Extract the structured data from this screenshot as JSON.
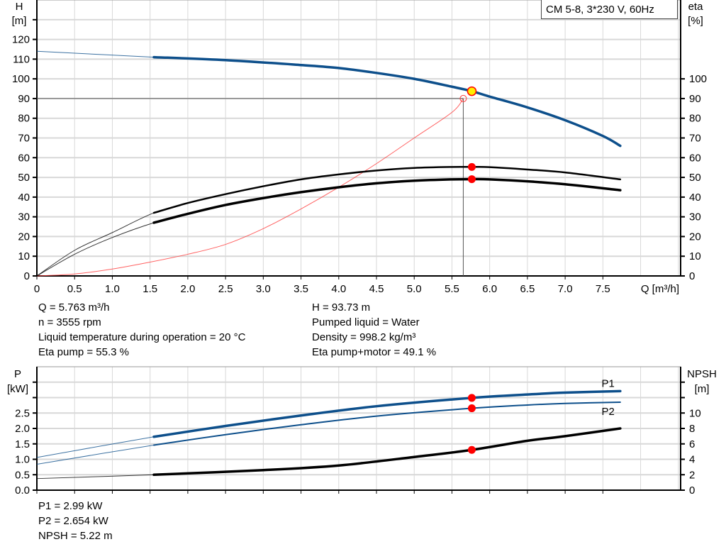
{
  "title_box": "CM 5-8, 3*230 V, 60Hz",
  "colors": {
    "head": "#0d4f8b",
    "eta": "#000000",
    "system": "#ff3b3b",
    "power": "#0d4f8b",
    "npsh": "#000000",
    "marker": "#ff0000",
    "duty": "#ffee00",
    "grid": "#d8d8d8"
  },
  "chart_data": [
    {
      "type": "line",
      "xlabel": "Q [m³/h]",
      "ylabel_left": [
        "H",
        "[m]"
      ],
      "ylabel_right": [
        "eta",
        "[%]"
      ],
      "x_ticks": [
        "0",
        "0.5",
        "1.0",
        "1.5",
        "2.0",
        "2.5",
        "3.0",
        "3.5",
        "4.0",
        "4.5",
        "5.0",
        "5.5",
        "6.0",
        "6.5",
        "7.0",
        "7.5"
      ],
      "y_left_ticks": [
        "0",
        "10",
        "20",
        "30",
        "40",
        "50",
        "60",
        "70",
        "80",
        "90",
        "100",
        "110",
        "120"
      ],
      "y_right_ticks": [
        "0",
        "10",
        "20",
        "30",
        "40",
        "50",
        "60",
        "70",
        "80",
        "90",
        "100"
      ],
      "xlim": [
        0,
        8.53
      ],
      "ylim": [
        0,
        140
      ],
      "grid": true,
      "operating_range_start_q": 1.55,
      "series": [
        {
          "key": "H",
          "axis": "left",
          "x": [
            0,
            1.55,
            2.5,
            3.5,
            4.0,
            4.5,
            5.0,
            5.5,
            5.763,
            6.0,
            6.5,
            7.0,
            7.5,
            7.73
          ],
          "y": [
            114,
            111,
            109.5,
            107,
            105.5,
            103,
            100,
            96,
            93.73,
            91,
            85.5,
            79,
            71,
            66
          ]
        },
        {
          "key": "eta_pump",
          "axis": "right",
          "x": [
            0,
            0.5,
            1.0,
            1.55,
            2.0,
            2.5,
            3.0,
            3.5,
            4.0,
            4.5,
            5.0,
            5.5,
            5.763,
            6.0,
            6.5,
            7.0,
            7.73
          ],
          "y": [
            0,
            13,
            22,
            32,
            37,
            41.5,
            45.5,
            49,
            51.5,
            53.5,
            54.8,
            55.3,
            55.3,
            55.2,
            54,
            52.5,
            49
          ]
        },
        {
          "key": "eta_pump_motor",
          "axis": "right",
          "x": [
            0,
            0.5,
            1.0,
            1.55,
            2.0,
            2.5,
            3.0,
            3.5,
            4.0,
            4.5,
            5.0,
            5.5,
            5.763,
            6.0,
            6.5,
            7.0,
            7.73
          ],
          "y": [
            0,
            11,
            19.5,
            27,
            31.5,
            36,
            39.5,
            42.5,
            45,
            47,
            48.3,
            49,
            49.1,
            49,
            48,
            46.5,
            43.5
          ]
        },
        {
          "key": "system",
          "axis": "left",
          "x": [
            0,
            0.5,
            1.0,
            1.5,
            2.0,
            2.5,
            3.0,
            3.5,
            4.0,
            4.5,
            5.0,
            5.5,
            5.65
          ],
          "y": [
            0,
            1,
            3.5,
            7,
            11,
            16,
            24,
            34,
            45,
            57,
            70,
            83,
            90
          ]
        }
      ],
      "duty_point": {
        "q": 5.763,
        "h": 93.73,
        "eta_pump": 55.3,
        "eta_pump_motor": 49.1
      },
      "set_point": {
        "q": 5.65,
        "h": 90
      }
    },
    {
      "type": "line",
      "ylabel_left": [
        "P",
        "[kW]"
      ],
      "ylabel_right": [
        "NPSH",
        "[m]"
      ],
      "y_left_ticks": [
        "0.0",
        "0.5",
        "1.0",
        "1.5",
        "2.0",
        "2.5"
      ],
      "y_right_ticks": [
        "0",
        "2",
        "4",
        "6",
        "8",
        "10"
      ],
      "xlim": [
        0,
        8.53
      ],
      "ylim_left": [
        0,
        4.0
      ],
      "ylim_right": [
        0,
        16
      ],
      "grid": true,
      "series": [
        {
          "key": "P1",
          "name": "P1",
          "axis": "left",
          "x": [
            0,
            1.55,
            2.5,
            3.5,
            4.5,
            5.763,
            6.5,
            7.0,
            7.73
          ],
          "y": [
            1.06,
            1.73,
            2.08,
            2.42,
            2.72,
            2.99,
            3.1,
            3.16,
            3.21
          ]
        },
        {
          "key": "P2",
          "name": "P2",
          "axis": "left",
          "x": [
            0,
            1.55,
            2.5,
            3.5,
            4.5,
            5.763,
            6.5,
            7.0,
            7.73
          ],
          "y": [
            0.84,
            1.46,
            1.8,
            2.12,
            2.4,
            2.654,
            2.76,
            2.81,
            2.85
          ]
        },
        {
          "key": "NPSH",
          "axis": "right",
          "x": [
            0,
            1.55,
            3.0,
            4.0,
            5.0,
            5.763,
            6.5,
            7.0,
            7.73
          ],
          "y": [
            1.5,
            2.0,
            2.6,
            3.2,
            4.3,
            5.22,
            6.4,
            7.0,
            8.0
          ]
        }
      ],
      "duty_point": {
        "q": 5.763,
        "p1": 2.99,
        "p2": 2.654,
        "npsh": 5.22
      }
    }
  ],
  "info_top_left": [
    "Q = 5.763 m³/h",
    "n = 3555 rpm",
    "Liquid temperature during operation = 20 °C",
    "Eta pump = 55.3 %"
  ],
  "info_top_right": [
    "H = 93.73 m",
    "Pumped liquid = Water",
    "Density = 998.2 kg/m³",
    "Eta pump+motor = 49.1 %"
  ],
  "info_bottom": [
    "P1 = 2.99 kW",
    "P2 = 2.654 kW",
    "NPSH = 5.22 m"
  ]
}
